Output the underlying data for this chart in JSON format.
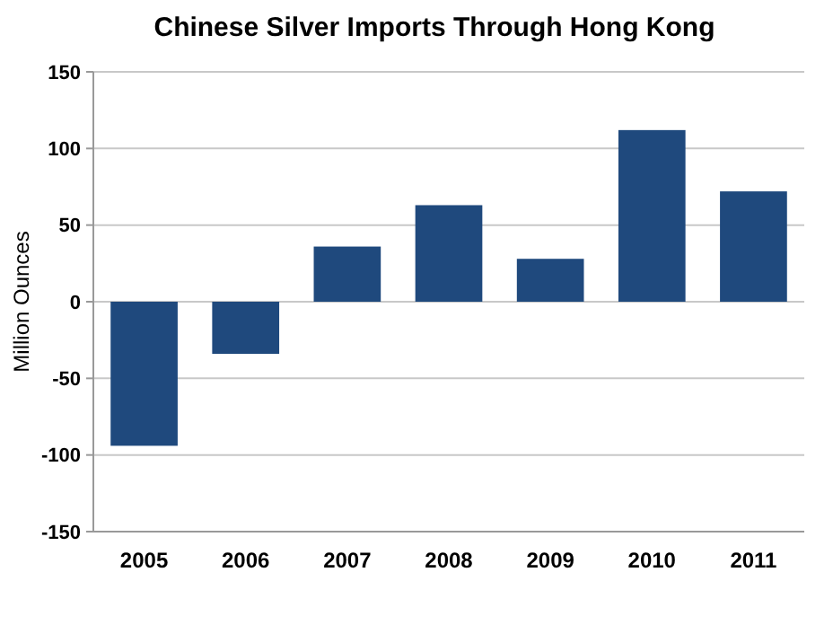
{
  "chart_data": {
    "type": "bar",
    "title": "Chinese Silver Imports Through Hong Kong",
    "ylabel": "Million Ounces",
    "categories": [
      "2005",
      "2006",
      "2007",
      "2008",
      "2009",
      "2010",
      "2011"
    ],
    "values": [
      -94,
      -34,
      36,
      63,
      28,
      112,
      72
    ],
    "color": "#1f497d",
    "ylim": [
      -150,
      150
    ],
    "yticks": [
      -150,
      -100,
      -50,
      0,
      50,
      100,
      150
    ],
    "grid": "y"
  }
}
